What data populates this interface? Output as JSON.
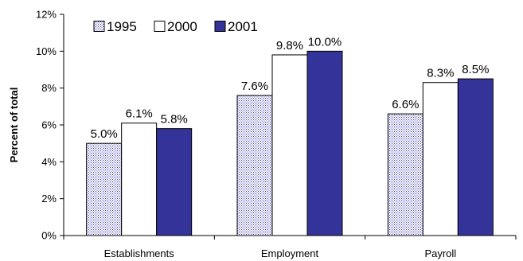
{
  "chart_data": {
    "type": "bar",
    "title": "",
    "xlabel": "",
    "ylabel": "Percent of total",
    "ylim": [
      0,
      12
    ],
    "yticks": [
      0,
      2,
      4,
      6,
      8,
      10,
      12
    ],
    "ytick_labels": [
      "0%",
      "2%",
      "4%",
      "6%",
      "8%",
      "10%",
      "12%"
    ],
    "categories": [
      "Establishments",
      "Employment",
      "Payroll"
    ],
    "series": [
      {
        "name": "1995",
        "values": [
          5.0,
          7.6,
          6.6
        ],
        "labels": [
          "5.0%",
          "7.6%",
          "6.6%"
        ],
        "fill": "pattern",
        "color": "#3333aa"
      },
      {
        "name": "2000",
        "values": [
          6.1,
          9.8,
          8.3
        ],
        "labels": [
          "6.1%",
          "9.8%",
          "8.3%"
        ],
        "fill": "solid",
        "color": "#ffffff"
      },
      {
        "name": "2001",
        "values": [
          5.8,
          10.0,
          8.5
        ],
        "labels": [
          "5.8%",
          "10.0%",
          "8.5%"
        ],
        "fill": "solid",
        "color": "#333399"
      }
    ],
    "grid": false,
    "legend": {
      "placement": "top-left",
      "orientation": "horizontal"
    }
  }
}
